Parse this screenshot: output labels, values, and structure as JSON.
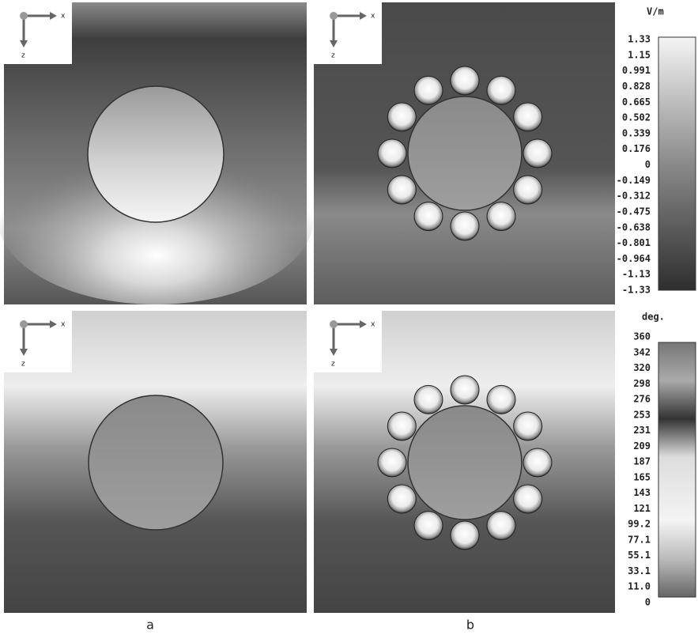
{
  "panel_labels": [
    "a",
    "b"
  ],
  "axis_labels": {
    "horizontal": "x",
    "vertical": "z"
  },
  "colorbars": [
    {
      "unit": "V/m",
      "ticks": [
        "1.33",
        "1.15",
        "0.991",
        "0.828",
        "0.665",
        "0.502",
        "0.339",
        "0.176",
        "0",
        "-0.149",
        "-0.312",
        "-0.475",
        "-0.638",
        "-0.801",
        "-0.964",
        "-1.13",
        "-1.33"
      ]
    },
    {
      "unit": "deg.",
      "ticks": [
        "360",
        "342",
        "320",
        "298",
        "276",
        "253",
        "231",
        "209",
        "187",
        "165",
        "143",
        "121",
        "99.2",
        "77.1",
        "55.1",
        "33.1",
        "11.0",
        "0"
      ]
    }
  ]
}
